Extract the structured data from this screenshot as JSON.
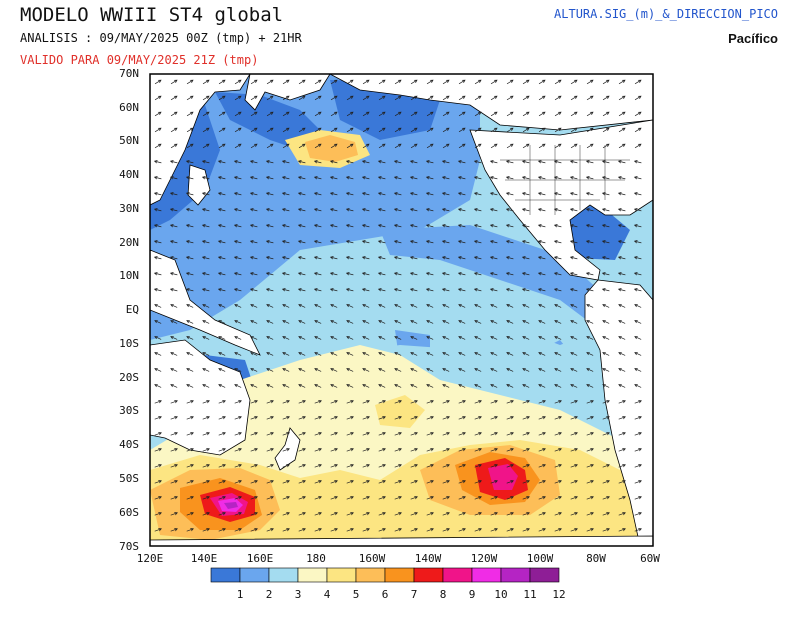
{
  "header": {
    "title": "MODELO WWIII ST4 global",
    "analysis": "ANALISIS : 09/MAY/2025 00Z  (tmp) + 21HR",
    "valid": "VALIDO PARA  09/MAY/2025 21Z  (tmp)",
    "variable": "ALTURA.SIG_(m)_&_DIRECCION_PICO",
    "region": "Pacífico"
  },
  "map": {
    "lat_labels": [
      "70N",
      "60N",
      "50N",
      "40N",
      "30N",
      "20N",
      "10N",
      "EQ",
      "10S",
      "20S",
      "30S",
      "40S",
      "50S",
      "60S",
      "70S"
    ],
    "lon_labels": [
      "120E",
      "140E",
      "160E",
      "180",
      "160W",
      "140W",
      "120W",
      "100W",
      "80W",
      "60W"
    ]
  },
  "legend": {
    "labels": [
      "1",
      "2",
      "3",
      "4",
      "5",
      "6",
      "7",
      "8",
      "9",
      "10",
      "11",
      "12"
    ],
    "colors": [
      "#3a78d8",
      "#6aa6ee",
      "#a4dcf0",
      "#fbf7c4",
      "#fce582",
      "#fdbe58",
      "#f9931e",
      "#ee1a1a",
      "#f01489",
      "#f02ce6",
      "#b524c4",
      "#8e1e96"
    ]
  },
  "fill_colors": {
    "land": "#ffffff",
    "ocean_base": "#a4dcf0"
  }
}
